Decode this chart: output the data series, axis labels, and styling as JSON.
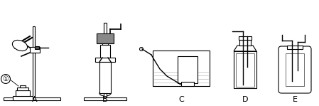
{
  "title": "",
  "bg_color": "#ffffff",
  "line_color": "#000000",
  "label_A": "A",
  "label_B": "B",
  "label_C": "C",
  "label_D": "D",
  "label_E": "E",
  "label_1": "①",
  "figsize": [
    4.49,
    1.49
  ],
  "dpi": 100
}
